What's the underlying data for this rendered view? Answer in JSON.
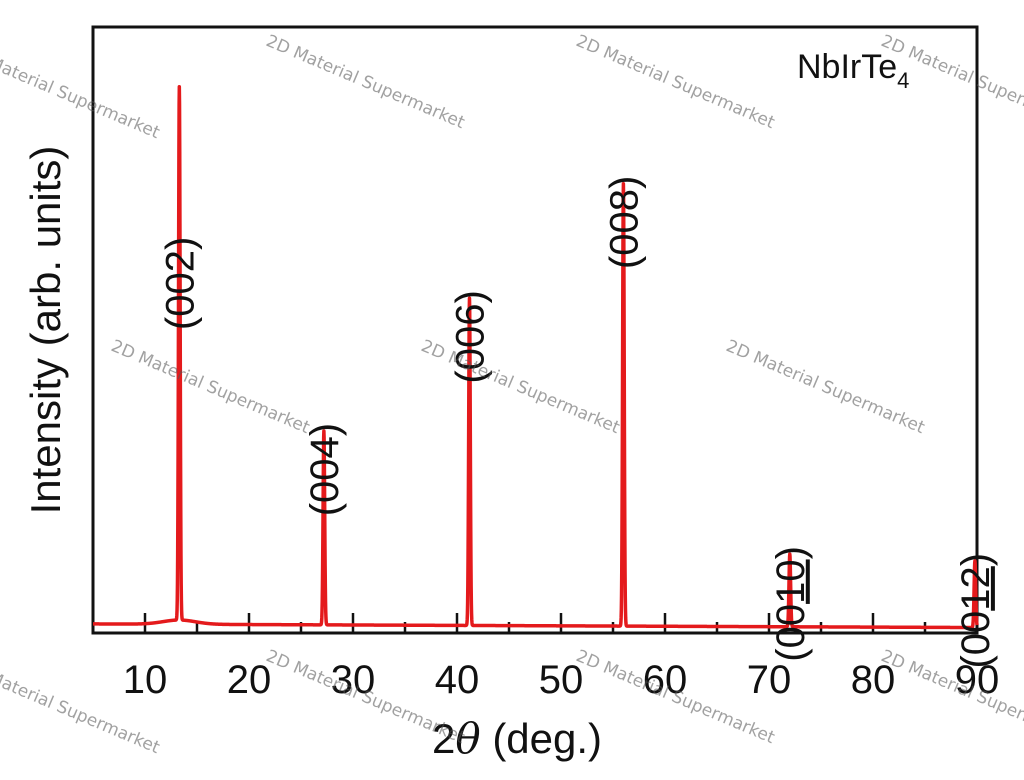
{
  "chart_data": {
    "type": "line",
    "title": "",
    "xlabel": "2θ (deg.)",
    "xlabel_parts": {
      "prefix": "2",
      "symbol": "θ",
      "suffix": " (deg.)"
    },
    "ylabel": "Intensity (arb. units)",
    "xlim": [
      5,
      90
    ],
    "ylim": [
      0,
      100
    ],
    "x_ticks": [
      10,
      20,
      30,
      40,
      50,
      60,
      70,
      80,
      90
    ],
    "x_tick_labels": [
      "10",
      "20",
      "30",
      "40",
      "50",
      "60",
      "70",
      "80",
      "90"
    ],
    "grid": false,
    "legend": "none",
    "series_color": "#e41a1c",
    "annotation": {
      "text": "NbIrTe",
      "subscript": "4"
    },
    "series": [
      {
        "peaks": [
          {
            "x": 13.3,
            "height": 88
          },
          {
            "x": 27.2,
            "height": 32
          },
          {
            "x": 41.2,
            "height": 54
          },
          {
            "x": 56.0,
            "height": 73
          },
          {
            "x": 72.0,
            "height": 12
          },
          {
            "x": 89.8,
            "height": 11
          }
        ]
      }
    ],
    "peak_labels": [
      {
        "text": "(002)",
        "x": 13.3,
        "underline": ""
      },
      {
        "text": "(004)",
        "x": 27.2,
        "underline": ""
      },
      {
        "text": "(006)",
        "x": 41.2,
        "underline": ""
      },
      {
        "text": "(008)",
        "x": 56.0,
        "underline": ""
      },
      {
        "text": "(0010)",
        "x": 72.0,
        "underline": "10"
      },
      {
        "text": "(0012)",
        "x": 89.8,
        "underline": "12"
      }
    ]
  },
  "watermark": {
    "text": "2D Material Supermarket"
  }
}
